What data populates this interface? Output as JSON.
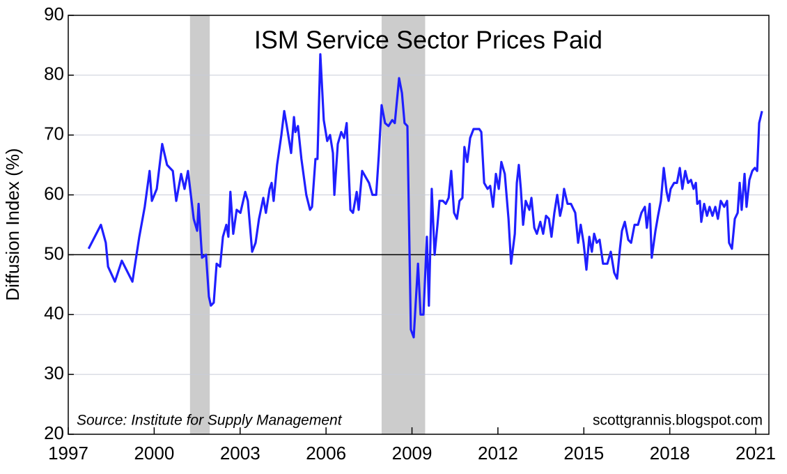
{
  "chart_data": {
    "type": "line",
    "title": "ISM Service Sector Prices Paid",
    "ylabel": "Diffusion Index (%)",
    "source": "Source:  Institute for Supply Management",
    "credit": "scottgrannis.blogspot.com",
    "xlim": [
      1997,
      2021.46
    ],
    "xticks": [
      1997,
      2000,
      2003,
      2006,
      2009,
      2012,
      2015,
      2018,
      2021
    ],
    "ylim": [
      20,
      90
    ],
    "yticks": [
      20,
      30,
      40,
      50,
      60,
      70,
      80,
      90
    ],
    "grid": true,
    "reference_line": 50,
    "recessions": [
      [
        2001.25,
        2001.94
      ],
      [
        2007.94,
        2009.46
      ]
    ],
    "series": [
      {
        "name": "ISM Services Prices Paid",
        "color": "#1f1fff",
        "x": [
          1997.71,
          1998.14,
          1998.31,
          1998.39,
          1998.63,
          1998.87,
          1999.24,
          1999.48,
          1999.67,
          1999.84,
          1999.92,
          2000.09,
          2000.28,
          2000.45,
          2000.65,
          2000.77,
          2000.94,
          2001.06,
          2001.18,
          2001.38,
          2001.5,
          2001.55,
          2001.67,
          2001.81,
          2001.91,
          2001.98,
          2002.08,
          2002.18,
          2002.3,
          2002.4,
          2002.52,
          2002.59,
          2002.66,
          2002.76,
          2002.88,
          2003.01,
          2003.18,
          2003.27,
          2003.42,
          2003.54,
          2003.66,
          2003.81,
          2003.9,
          2004.03,
          2004.1,
          2004.17,
          2004.29,
          2004.44,
          2004.54,
          2004.63,
          2004.78,
          2004.88,
          2004.93,
          2005.02,
          2005.14,
          2005.31,
          2005.44,
          2005.51,
          2005.63,
          2005.7,
          2005.8,
          2005.92,
          2006.04,
          2006.14,
          2006.24,
          2006.29,
          2006.41,
          2006.53,
          2006.63,
          2006.72,
          2006.85,
          2006.94,
          2007.07,
          2007.14,
          2007.26,
          2007.38,
          2007.5,
          2007.62,
          2007.75,
          2007.84,
          2007.94,
          2008.06,
          2008.18,
          2008.31,
          2008.4,
          2008.55,
          2008.65,
          2008.74,
          2008.84,
          2008.96,
          2009.06,
          2009.21,
          2009.3,
          2009.4,
          2009.52,
          2009.59,
          2009.69,
          2009.79,
          2009.89,
          2009.96,
          2010.08,
          2010.18,
          2010.28,
          2010.37,
          2010.47,
          2010.57,
          2010.66,
          2010.76,
          2010.83,
          2010.93,
          2011.03,
          2011.15,
          2011.35,
          2011.42,
          2011.52,
          2011.64,
          2011.73,
          2011.83,
          2011.93,
          2012.03,
          2012.12,
          2012.24,
          2012.37,
          2012.46,
          2012.59,
          2012.66,
          2012.73,
          2012.8,
          2012.88,
          2012.97,
          2013.1,
          2013.17,
          2013.27,
          2013.36,
          2013.48,
          2013.58,
          2013.68,
          2013.78,
          2013.87,
          2013.97,
          2014.07,
          2014.17,
          2014.24,
          2014.31,
          2014.43,
          2014.55,
          2014.7,
          2014.8,
          2014.89,
          2014.99,
          2015.09,
          2015.19,
          2015.28,
          2015.36,
          2015.45,
          2015.55,
          2015.67,
          2015.82,
          2015.94,
          2016.06,
          2016.16,
          2016.26,
          2016.33,
          2016.43,
          2016.55,
          2016.65,
          2016.77,
          2016.89,
          2017.01,
          2017.13,
          2017.2,
          2017.3,
          2017.37,
          2017.5,
          2017.59,
          2017.69,
          2017.79,
          2017.89,
          2017.96,
          2018.03,
          2018.15,
          2018.25,
          2018.35,
          2018.44,
          2018.54,
          2018.64,
          2018.74,
          2018.83,
          2018.91,
          2018.96,
          2019.05,
          2019.1,
          2019.2,
          2019.3,
          2019.39,
          2019.49,
          2019.59,
          2019.68,
          2019.78,
          2019.9,
          2020.0,
          2020.07,
          2020.17,
          2020.27,
          2020.37,
          2020.44,
          2020.51,
          2020.61,
          2020.68,
          2020.78,
          2020.88,
          2020.97,
          2021.05,
          2021.12,
          2021.22
        ],
        "values": [
          51,
          55,
          52,
          48,
          45.5,
          49,
          45.5,
          53,
          58,
          64,
          59,
          61,
          68.5,
          65,
          64,
          59,
          63.5,
          61,
          64,
          56,
          54,
          58.5,
          49.5,
          50,
          43,
          41.5,
          42,
          48.5,
          48,
          53,
          55,
          53,
          60.5,
          53.5,
          57.5,
          57,
          60.5,
          59,
          50.5,
          52,
          56,
          59.5,
          57,
          61,
          62,
          59,
          65,
          70,
          74,
          71.5,
          67,
          73,
          70.5,
          71.5,
          66,
          60,
          57.5,
          58,
          66,
          66,
          83.5,
          72.5,
          69,
          70,
          67,
          60,
          68.5,
          70.5,
          69.5,
          72,
          57.5,
          57,
          60.5,
          57.5,
          64,
          63,
          62,
          60,
          60,
          66.5,
          75,
          72,
          71.5,
          72.5,
          72,
          79.5,
          77,
          72,
          71.5,
          37.5,
          36.2,
          48.5,
          40,
          40,
          53,
          41.5,
          61,
          50,
          55,
          59,
          59,
          58.5,
          59.5,
          64,
          57,
          56,
          59,
          59.5,
          68,
          65.5,
          69.5,
          71,
          71,
          70.5,
          62,
          61,
          61.5,
          58,
          63.5,
          61,
          65.5,
          63.5,
          56,
          48.5,
          53.5,
          62,
          65,
          61,
          55,
          59,
          57.5,
          59.5,
          54.5,
          53.5,
          55.5,
          53.5,
          56.5,
          56,
          53,
          57,
          60,
          56.5,
          58,
          61,
          58.5,
          58.5,
          57,
          52,
          55,
          52,
          47.5,
          53,
          50.5,
          53.5,
          52,
          52.5,
          48.5,
          48.5,
          50.5,
          47,
          46,
          51,
          54,
          55.5,
          52.5,
          52,
          55,
          55,
          57,
          58,
          54.5,
          58.5,
          49.5,
          54,
          56.5,
          59,
          64.5,
          60.5,
          59,
          61,
          62,
          62,
          64.5,
          61,
          64,
          62,
          62.5,
          61,
          62,
          58.5,
          59,
          55.5,
          58.5,
          56.5,
          58,
          56.5,
          58,
          56,
          59,
          58,
          59,
          52,
          51,
          56,
          57,
          62,
          57.5,
          63.5,
          58,
          62.5,
          64,
          64.5,
          64,
          72,
          74
        ]
      }
    ]
  }
}
